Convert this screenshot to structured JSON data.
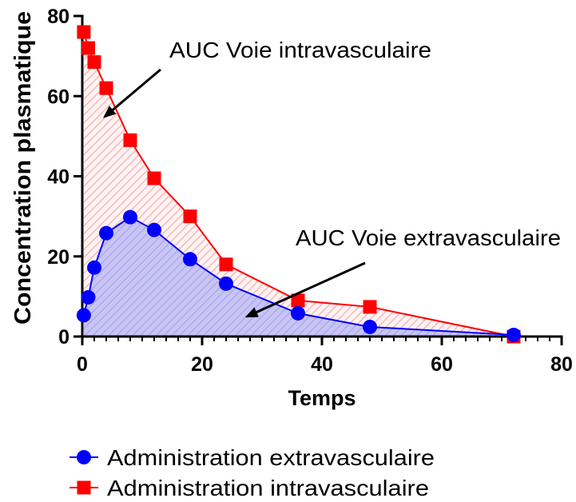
{
  "chart_data": {
    "type": "area",
    "xlabel": "Temps",
    "ylabel": "Concentration plasmatique",
    "xlim": [
      0,
      80
    ],
    "ylim": [
      0,
      80
    ],
    "x_ticks": [
      0,
      20,
      40,
      60,
      80
    ],
    "y_ticks": [
      0,
      20,
      40,
      60,
      80
    ],
    "grid": false,
    "legend_placement": "bottom",
    "series": [
      {
        "name": "Administration extravasculaire",
        "color": "#0000ff",
        "marker": "circle",
        "area_color": "#c8c5f4",
        "hatch_color": "#aca7ef",
        "x": [
          0.25,
          1,
          2,
          4,
          8,
          12,
          18,
          24,
          36,
          48,
          72
        ],
        "y": [
          5.3,
          9.8,
          17.2,
          25.8,
          29.8,
          26.6,
          19.3,
          13.2,
          5.8,
          2.4,
          0.4
        ]
      },
      {
        "name": "Administration intravasculaire",
        "color": "#ff0000",
        "marker": "square",
        "area_color": "#fff3f3",
        "hatch_color": "#f6b4b4",
        "x": [
          0.25,
          1,
          2,
          4,
          8,
          12,
          18,
          24,
          36,
          48,
          72
        ],
        "y": [
          76,
          72,
          68.5,
          62,
          49,
          39.5,
          30,
          18,
          9,
          7.4,
          0
        ]
      }
    ],
    "annotations": [
      "AUC Voie intravasculaire",
      "AUC Voie extravasculaire"
    ]
  }
}
